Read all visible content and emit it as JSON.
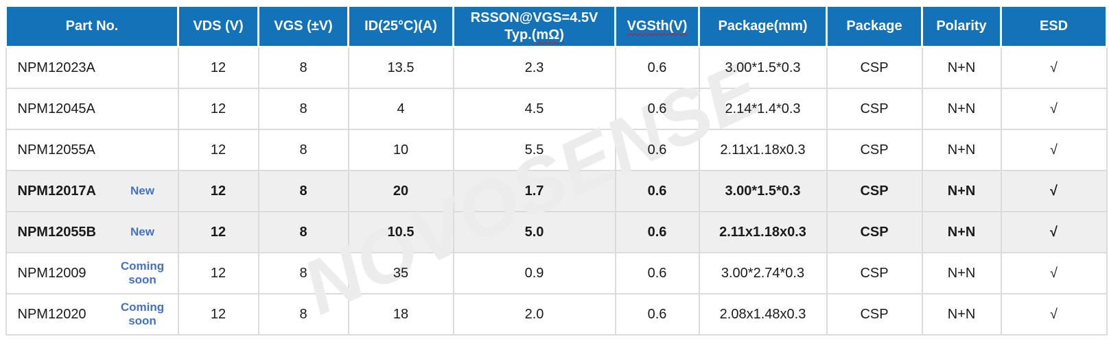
{
  "table": {
    "columns": [
      {
        "label": "Part No."
      },
      {
        "label": "VDS (V)"
      },
      {
        "label": "VGS (±V)"
      },
      {
        "label": "ID(25°C)(A)"
      },
      {
        "label": "RSSON@VGS=4.5V",
        "label2_plain": "Typ.",
        "label2_wavy": "(mΩ)"
      },
      {
        "label": "VGSth(V)"
      },
      {
        "label": "Package(mm)"
      },
      {
        "label": "Package"
      },
      {
        "label": "Polarity"
      },
      {
        "label": "ESD"
      }
    ],
    "rows": [
      {
        "part": "NPM12023A",
        "badge": "",
        "vds": "12",
        "vgs": "8",
        "id": "13.5",
        "rsson": "2.3",
        "vgsth": "0.6",
        "package_mm": "3.00*1.5*0.3",
        "package": "CSP",
        "polarity": "N+N",
        "esd": "√",
        "highlight": false
      },
      {
        "part": "NPM12045A",
        "badge": "",
        "vds": "12",
        "vgs": "8",
        "id": "4",
        "rsson": "4.5",
        "vgsth": "0.6",
        "package_mm": "2.14*1.4*0.3",
        "package": "CSP",
        "polarity": "N+N",
        "esd": "√",
        "highlight": false
      },
      {
        "part": "NPM12055A",
        "badge": "",
        "vds": "12",
        "vgs": "8",
        "id": "10",
        "rsson": "5.5",
        "vgsth": "0.6",
        "package_mm": "2.11x1.18x0.3",
        "package": "CSP",
        "polarity": "N+N",
        "esd": "√",
        "highlight": false
      },
      {
        "part": "NPM12017A",
        "badge": "New",
        "vds": "12",
        "vgs": "8",
        "id": "20",
        "rsson": "1.7",
        "vgsth": "0.6",
        "package_mm": "3.00*1.5*0.3",
        "package": "CSP",
        "polarity": "N+N",
        "esd": "√",
        "highlight": true
      },
      {
        "part": "NPM12055B",
        "badge": "New",
        "vds": "12",
        "vgs": "8",
        "id": "10.5",
        "rsson": "5.0",
        "vgsth": "0.6",
        "package_mm": "2.11x1.18x0.3",
        "package": "CSP",
        "polarity": "N+N",
        "esd": "√",
        "highlight": true
      },
      {
        "part": "NPM12009",
        "badge": "Coming soon",
        "vds": "12",
        "vgs": "8",
        "id": "35",
        "rsson": "0.9",
        "vgsth": "0.6",
        "package_mm": "3.00*2.74*0.3",
        "package": "CSP",
        "polarity": "N+N",
        "esd": "√",
        "highlight": false
      },
      {
        "part": "NPM12020",
        "badge": "Coming soon",
        "vds": "12",
        "vgs": "8",
        "id": "18",
        "rsson": "2.0",
        "vgsth": "0.6",
        "package_mm": "2.08x1.48x0.3",
        "package": "CSP",
        "polarity": "N+N",
        "esd": "√",
        "highlight": false
      }
    ]
  },
  "watermark": {
    "text": "NOVOSENSE"
  },
  "colors": {
    "header_bg": "#1472b8",
    "header_text": "#ffffff",
    "badge_blue": "#4271c6",
    "highlight_row_bg": "#f0eff0",
    "cell_border": "#dbdbdb",
    "wavy_underline": "#ff0000",
    "watermark_gray": "#ececec"
  }
}
